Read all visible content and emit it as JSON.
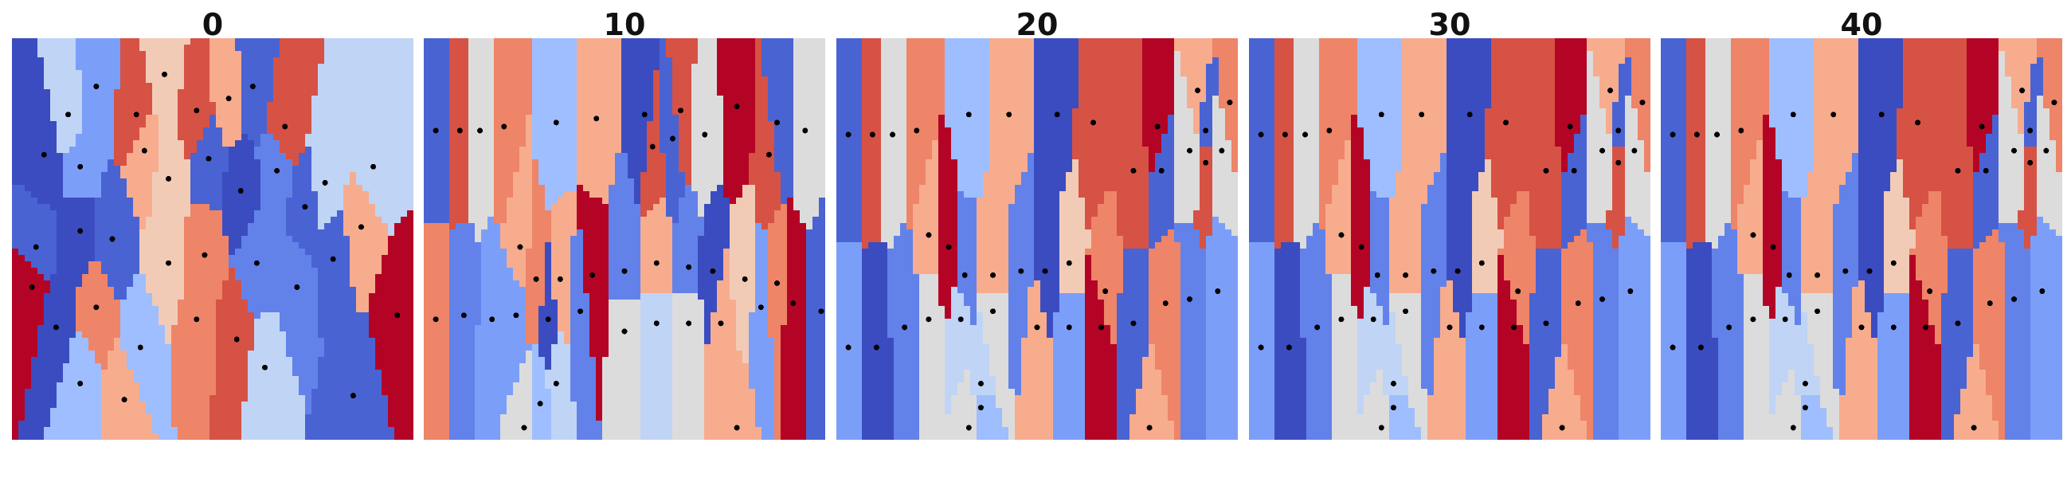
{
  "figure": {
    "colormap": "coolwarm",
    "point_color": "#000000",
    "background": "#ffffff",
    "axes_visible": false
  },
  "panels": [
    {
      "title": "0",
      "points": [
        [
          0.14,
          0.19
        ],
        [
          0.21,
          0.12
        ],
        [
          0.31,
          0.19
        ],
        [
          0.38,
          0.09
        ],
        [
          0.46,
          0.18
        ],
        [
          0.54,
          0.15
        ],
        [
          0.6,
          0.12
        ],
        [
          0.68,
          0.22
        ],
        [
          0.08,
          0.29
        ],
        [
          0.17,
          0.32
        ],
        [
          0.33,
          0.28
        ],
        [
          0.39,
          0.35
        ],
        [
          0.49,
          0.3
        ],
        [
          0.57,
          0.38
        ],
        [
          0.66,
          0.33
        ],
        [
          0.78,
          0.36
        ],
        [
          0.9,
          0.32
        ],
        [
          0.06,
          0.52
        ],
        [
          0.17,
          0.48
        ],
        [
          0.25,
          0.5
        ],
        [
          0.39,
          0.56
        ],
        [
          0.48,
          0.54
        ],
        [
          0.61,
          0.56
        ],
        [
          0.71,
          0.62
        ],
        [
          0.8,
          0.55
        ],
        [
          0.96,
          0.69
        ],
        [
          0.11,
          0.72
        ],
        [
          0.21,
          0.67
        ],
        [
          0.32,
          0.77
        ],
        [
          0.46,
          0.7
        ],
        [
          0.56,
          0.75
        ],
        [
          0.63,
          0.82
        ],
        [
          0.85,
          0.89
        ],
        [
          0.17,
          0.86
        ],
        [
          0.28,
          0.9
        ],
        [
          0.05,
          0.62
        ],
        [
          0.73,
          0.42
        ],
        [
          0.87,
          0.47
        ]
      ]
    },
    {
      "title": "10",
      "points": [
        [
          0.03,
          0.23
        ],
        [
          0.09,
          0.23
        ],
        [
          0.14,
          0.23
        ],
        [
          0.2,
          0.22
        ],
        [
          0.33,
          0.21
        ],
        [
          0.43,
          0.2
        ],
        [
          0.55,
          0.19
        ],
        [
          0.64,
          0.18
        ],
        [
          0.78,
          0.17
        ],
        [
          0.88,
          0.21
        ],
        [
          0.57,
          0.27
        ],
        [
          0.62,
          0.25
        ],
        [
          0.7,
          0.24
        ],
        [
          0.86,
          0.29
        ],
        [
          0.95,
          0.23
        ],
        [
          0.24,
          0.52
        ],
        [
          0.28,
          0.6
        ],
        [
          0.34,
          0.6
        ],
        [
          0.42,
          0.59
        ],
        [
          0.5,
          0.58
        ],
        [
          0.58,
          0.56
        ],
        [
          0.66,
          0.57
        ],
        [
          0.72,
          0.58
        ],
        [
          0.8,
          0.6
        ],
        [
          0.88,
          0.61
        ],
        [
          0.03,
          0.7
        ],
        [
          0.1,
          0.69
        ],
        [
          0.17,
          0.7
        ],
        [
          0.23,
          0.69
        ],
        [
          0.31,
          0.7
        ],
        [
          0.39,
          0.68
        ],
        [
          0.5,
          0.73
        ],
        [
          0.58,
          0.71
        ],
        [
          0.66,
          0.71
        ],
        [
          0.74,
          0.71
        ],
        [
          0.84,
          0.67
        ],
        [
          0.92,
          0.66
        ],
        [
          0.99,
          0.68
        ],
        [
          0.33,
          0.86
        ],
        [
          0.29,
          0.91
        ],
        [
          0.25,
          0.97
        ],
        [
          0.78,
          0.97
        ]
      ]
    },
    {
      "title": "20",
      "points": [
        [
          0.03,
          0.24
        ],
        [
          0.09,
          0.24
        ],
        [
          0.14,
          0.24
        ],
        [
          0.2,
          0.23
        ],
        [
          0.33,
          0.19
        ],
        [
          0.43,
          0.19
        ],
        [
          0.55,
          0.19
        ],
        [
          0.64,
          0.21
        ],
        [
          0.8,
          0.22
        ],
        [
          0.92,
          0.23
        ],
        [
          0.74,
          0.33
        ],
        [
          0.81,
          0.33
        ],
        [
          0.88,
          0.28
        ],
        [
          0.92,
          0.31
        ],
        [
          0.96,
          0.28
        ],
        [
          0.9,
          0.13
        ],
        [
          0.98,
          0.16
        ],
        [
          0.23,
          0.49
        ],
        [
          0.28,
          0.52
        ],
        [
          0.32,
          0.59
        ],
        [
          0.39,
          0.59
        ],
        [
          0.46,
          0.58
        ],
        [
          0.52,
          0.58
        ],
        [
          0.58,
          0.56
        ],
        [
          0.67,
          0.63
        ],
        [
          0.82,
          0.66
        ],
        [
          0.88,
          0.65
        ],
        [
          0.95,
          0.63
        ],
        [
          0.03,
          0.77
        ],
        [
          0.1,
          0.77
        ],
        [
          0.17,
          0.72
        ],
        [
          0.23,
          0.7
        ],
        [
          0.31,
          0.7
        ],
        [
          0.39,
          0.68
        ],
        [
          0.5,
          0.72
        ],
        [
          0.58,
          0.72
        ],
        [
          0.66,
          0.72
        ],
        [
          0.74,
          0.71
        ],
        [
          0.36,
          0.86
        ],
        [
          0.36,
          0.92
        ],
        [
          0.33,
          0.97
        ],
        [
          0.78,
          0.97
        ]
      ]
    },
    {
      "title": "30",
      "points": [
        [
          0.03,
          0.24
        ],
        [
          0.09,
          0.24
        ],
        [
          0.14,
          0.24
        ],
        [
          0.2,
          0.23
        ],
        [
          0.33,
          0.19
        ],
        [
          0.43,
          0.19
        ],
        [
          0.55,
          0.19
        ],
        [
          0.64,
          0.21
        ],
        [
          0.8,
          0.22
        ],
        [
          0.92,
          0.23
        ],
        [
          0.74,
          0.33
        ],
        [
          0.81,
          0.33
        ],
        [
          0.88,
          0.28
        ],
        [
          0.92,
          0.31
        ],
        [
          0.96,
          0.28
        ],
        [
          0.9,
          0.13
        ],
        [
          0.98,
          0.16
        ],
        [
          0.23,
          0.49
        ],
        [
          0.28,
          0.52
        ],
        [
          0.32,
          0.59
        ],
        [
          0.39,
          0.59
        ],
        [
          0.46,
          0.58
        ],
        [
          0.52,
          0.58
        ],
        [
          0.58,
          0.56
        ],
        [
          0.67,
          0.63
        ],
        [
          0.82,
          0.66
        ],
        [
          0.88,
          0.65
        ],
        [
          0.95,
          0.63
        ],
        [
          0.03,
          0.77
        ],
        [
          0.1,
          0.77
        ],
        [
          0.17,
          0.72
        ],
        [
          0.23,
          0.7
        ],
        [
          0.31,
          0.7
        ],
        [
          0.39,
          0.68
        ],
        [
          0.5,
          0.72
        ],
        [
          0.58,
          0.72
        ],
        [
          0.66,
          0.72
        ],
        [
          0.74,
          0.71
        ],
        [
          0.36,
          0.86
        ],
        [
          0.36,
          0.92
        ],
        [
          0.33,
          0.97
        ],
        [
          0.78,
          0.97
        ]
      ]
    },
    {
      "title": "40",
      "points": [
        [
          0.03,
          0.24
        ],
        [
          0.09,
          0.24
        ],
        [
          0.14,
          0.24
        ],
        [
          0.2,
          0.23
        ],
        [
          0.33,
          0.19
        ],
        [
          0.43,
          0.19
        ],
        [
          0.55,
          0.19
        ],
        [
          0.64,
          0.21
        ],
        [
          0.8,
          0.22
        ],
        [
          0.92,
          0.23
        ],
        [
          0.74,
          0.33
        ],
        [
          0.81,
          0.33
        ],
        [
          0.88,
          0.28
        ],
        [
          0.92,
          0.31
        ],
        [
          0.96,
          0.28
        ],
        [
          0.9,
          0.13
        ],
        [
          0.98,
          0.16
        ],
        [
          0.23,
          0.49
        ],
        [
          0.28,
          0.52
        ],
        [
          0.32,
          0.59
        ],
        [
          0.39,
          0.59
        ],
        [
          0.46,
          0.58
        ],
        [
          0.52,
          0.58
        ],
        [
          0.58,
          0.56
        ],
        [
          0.67,
          0.63
        ],
        [
          0.82,
          0.66
        ],
        [
          0.88,
          0.65
        ],
        [
          0.95,
          0.63
        ],
        [
          0.03,
          0.77
        ],
        [
          0.1,
          0.77
        ],
        [
          0.17,
          0.72
        ],
        [
          0.23,
          0.7
        ],
        [
          0.31,
          0.7
        ],
        [
          0.39,
          0.68
        ],
        [
          0.5,
          0.72
        ],
        [
          0.58,
          0.72
        ],
        [
          0.66,
          0.72
        ],
        [
          0.74,
          0.71
        ],
        [
          0.36,
          0.86
        ],
        [
          0.36,
          0.92
        ],
        [
          0.33,
          0.97
        ],
        [
          0.78,
          0.97
        ]
      ]
    }
  ]
}
